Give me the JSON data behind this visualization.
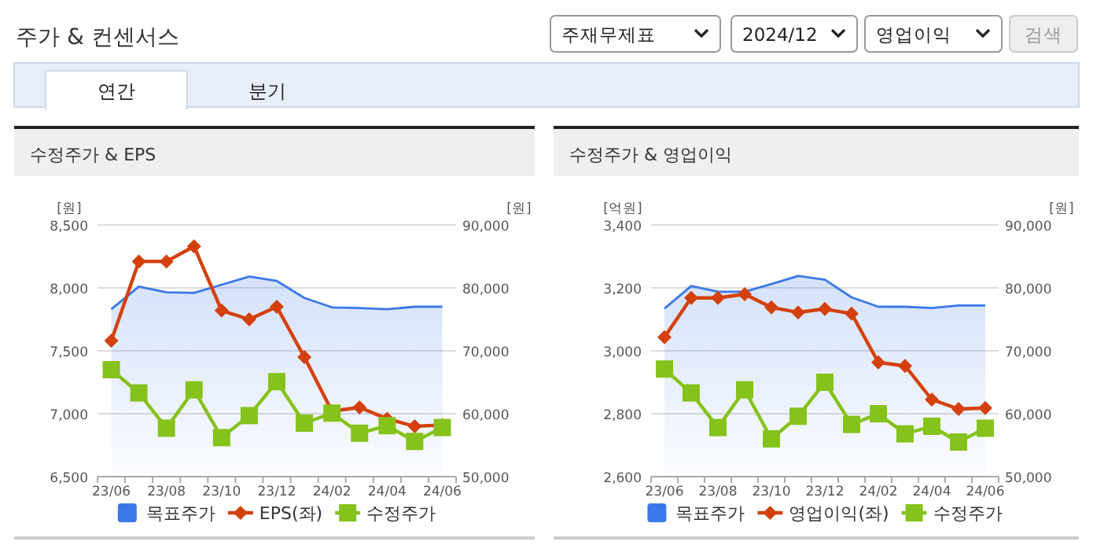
{
  "chart_data": [
    {
      "type": "line",
      "title": "수정주가 & EPS",
      "annotations": [
        "주가 & 컨센서스",
        "주재무제표",
        "2024/12",
        "영업이익",
        "검색",
        "연간",
        "분기"
      ],
      "categories": [
        "23/06",
        null,
        "23/08",
        null,
        "23/10",
        null,
        "23/12",
        null,
        "24/02",
        null,
        "24/04",
        null,
        "24/06"
      ],
      "ylabel": "[원]",
      "y2label": "[원]",
      "ylim": [
        6500,
        8500
      ],
      "yticks": [
        {
          "value": 6500,
          "label": "6,500"
        },
        {
          "value": 7000,
          "label": "7,000"
        },
        {
          "value": 7500,
          "label": "7,500"
        },
        {
          "value": 8000,
          "label": "8,000"
        },
        {
          "value": 8500,
          "label": "8,500"
        }
      ],
      "y2lim": [
        50000,
        90000
      ],
      "y2ticks": [
        {
          "value": 50000,
          "label": "50,000"
        },
        {
          "value": 60000,
          "label": "60,000"
        },
        {
          "value": 70000,
          "label": "70,000"
        },
        {
          "value": 80000,
          "label": "80,000"
        },
        {
          "value": 90000,
          "label": "90,000"
        }
      ],
      "grid": "y",
      "legend": "bottom",
      "series": [
        {
          "name": "목표주가",
          "type": "area",
          "axis": "y2",
          "color": "#3b78e7",
          "marker": "none",
          "values": [
            76600,
            80200,
            79300,
            79200,
            80500,
            81800,
            81100,
            78400,
            76900,
            76800,
            76600,
            77000,
            77000
          ]
        },
        {
          "name": "EPS(좌)",
          "type": "line",
          "color": "#d4400c",
          "marker": "diamond",
          "values": [
            7580,
            8210,
            8210,
            8330,
            7820,
            7750,
            7850,
            7450,
            7020,
            7050,
            6960,
            6900,
            6910
          ]
        },
        {
          "name": "수정주가",
          "type": "line",
          "axis": "y2",
          "color": "#86c21c",
          "marker": "square",
          "values": [
            67000,
            63300,
            57700,
            63800,
            56200,
            59700,
            65100,
            58500,
            60100,
            56900,
            58100,
            55600,
            57800
          ]
        }
      ]
    },
    {
      "type": "line",
      "title": "수정주가 & 영업이익",
      "categories": [
        "23/06",
        null,
        "23/08",
        null,
        "23/10",
        null,
        "23/12",
        null,
        "24/02",
        null,
        "24/04",
        null,
        "24/06"
      ],
      "ylabel": "[억원]",
      "y2label": "[원]",
      "ylim": [
        2600,
        3400
      ],
      "yticks": [
        {
          "value": 2600,
          "label": "2,600"
        },
        {
          "value": 2800,
          "label": "2,800"
        },
        {
          "value": 3000,
          "label": "3,000"
        },
        {
          "value": 3200,
          "label": "3,200"
        },
        {
          "value": 3400,
          "label": "3,400"
        }
      ],
      "y2lim": [
        50000,
        90000
      ],
      "y2ticks": [
        {
          "value": 50000,
          "label": "50,000"
        },
        {
          "value": 60000,
          "label": "60,000"
        },
        {
          "value": 70000,
          "label": "70,000"
        },
        {
          "value": 80000,
          "label": "80,000"
        },
        {
          "value": 90000,
          "label": "90,000"
        }
      ],
      "grid": "y",
      "legend": "bottom",
      "series": [
        {
          "name": "목표주가",
          "type": "area",
          "axis": "y2",
          "color": "#3b78e7",
          "marker": "none",
          "values": [
            76700,
            80300,
            79400,
            79400,
            80600,
            81900,
            81300,
            78500,
            77000,
            77000,
            76800,
            77200,
            77200
          ]
        },
        {
          "name": "영업이익(좌)",
          "type": "line",
          "color": "#d4400c",
          "marker": "diamond",
          "values": [
            3043,
            3168,
            3168,
            3180,
            3138,
            3122,
            3133,
            3118,
            2963,
            2952,
            2845,
            2815,
            2818
          ]
        },
        {
          "name": "수정주가",
          "type": "line",
          "axis": "y2",
          "color": "#86c21c",
          "marker": "square",
          "values": [
            67100,
            63300,
            57800,
            63800,
            56000,
            59600,
            65000,
            58300,
            60000,
            56800,
            58000,
            55500,
            57700
          ]
        }
      ]
    }
  ]
}
